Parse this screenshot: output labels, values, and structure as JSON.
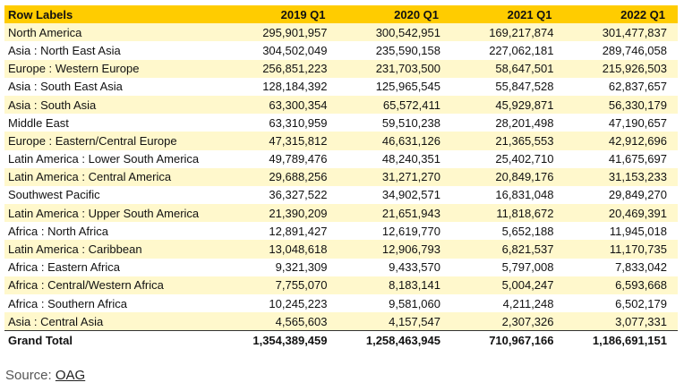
{
  "table": {
    "headers": [
      "Row Labels",
      "2019 Q1",
      "2020 Q1",
      "2021 Q1",
      "2022 Q1"
    ],
    "rows": [
      [
        "North America",
        "295,901,957",
        "300,542,951",
        "169,217,874",
        "301,477,837"
      ],
      [
        "Asia : North East Asia",
        "304,502,049",
        "235,590,158",
        "227,062,181",
        "289,746,058"
      ],
      [
        "Europe : Western Europe",
        "256,851,223",
        "231,703,500",
        "58,647,501",
        "215,926,503"
      ],
      [
        "Asia : South East Asia",
        "128,184,392",
        "125,965,545",
        "55,847,528",
        "62,837,657"
      ],
      [
        "Asia : South Asia",
        "63,300,354",
        "65,572,411",
        "45,929,871",
        "56,330,179"
      ],
      [
        "Middle East",
        "63,310,959",
        "59,510,238",
        "28,201,498",
        "47,190,657"
      ],
      [
        "Europe : Eastern/Central Europe",
        "47,315,812",
        "46,631,126",
        "21,365,553",
        "42,912,696"
      ],
      [
        "Latin America : Lower South America",
        "49,789,476",
        "48,240,351",
        "25,402,710",
        "41,675,697"
      ],
      [
        "Latin America : Central America",
        "29,688,256",
        "31,271,270",
        "20,849,176",
        "31,153,233"
      ],
      [
        "Southwest Pacific",
        "36,327,522",
        "34,902,571",
        "16,831,048",
        "29,849,270"
      ],
      [
        "Latin America : Upper South America",
        "21,390,209",
        "21,651,943",
        "11,818,672",
        "20,469,391"
      ],
      [
        "Africa : North Africa",
        "12,891,427",
        "12,619,770",
        "5,652,188",
        "11,945,018"
      ],
      [
        "Latin America : Caribbean",
        "13,048,618",
        "12,906,793",
        "6,821,537",
        "11,170,735"
      ],
      [
        "Africa : Eastern Africa",
        "9,321,309",
        "9,433,570",
        "5,797,008",
        "7,833,042"
      ],
      [
        "Africa : Central/Western Africa",
        "7,755,070",
        "8,183,141",
        "5,004,247",
        "6,593,668"
      ],
      [
        "Africa : Southern Africa",
        "10,245,223",
        "9,581,060",
        "4,211,248",
        "6,502,179"
      ],
      [
        "Asia : Central Asia",
        "4,565,603",
        "4,157,547",
        "2,307,326",
        "3,077,331"
      ]
    ],
    "grand_total": [
      "Grand Total",
      "1,354,389,459",
      "1,258,463,945",
      "710,967,166",
      "1,186,691,151"
    ]
  },
  "source": {
    "prefix": "Source: ",
    "link_text": "OAG"
  },
  "colors": {
    "header_bg": "#ffcc00",
    "band_bg": "#fff8cc"
  }
}
